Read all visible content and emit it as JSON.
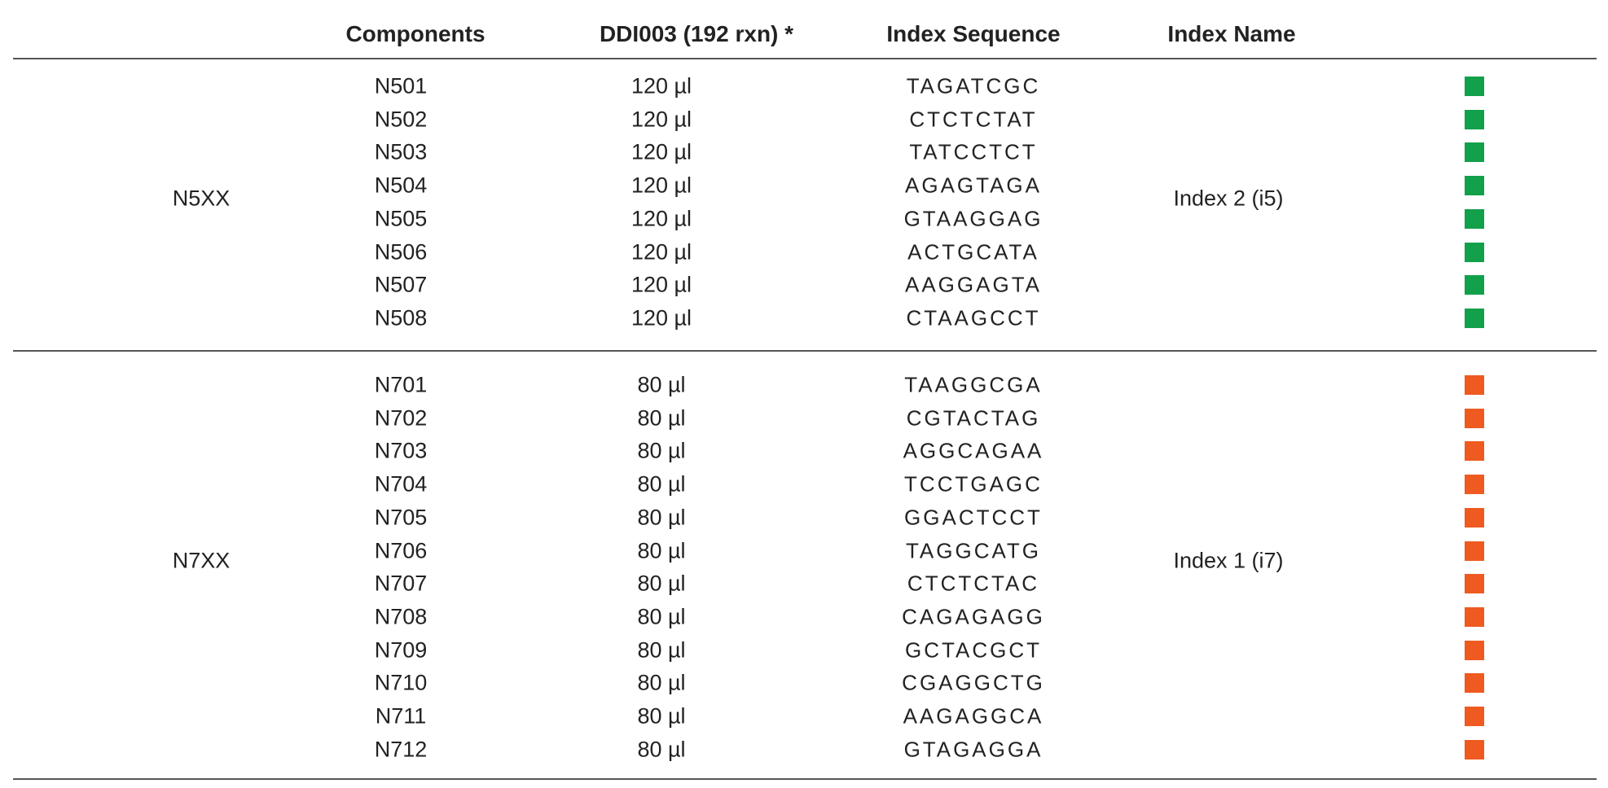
{
  "header": {
    "components": "Components",
    "volume": "DDI003 (192 rxn) *",
    "sequence": "Index Sequence",
    "index_name": "Index Name"
  },
  "groups": [
    {
      "label": "N5XX",
      "index_name": "Index 2 (i5)",
      "color": "#12a04a",
      "rows": [
        {
          "component": "N501",
          "volume": "120 µl",
          "sequence": "TAGATCGC"
        },
        {
          "component": "N502",
          "volume": "120 µl",
          "sequence": "CTCTCTAT"
        },
        {
          "component": "N503",
          "volume": "120 µl",
          "sequence": "TATCCTCT"
        },
        {
          "component": "N504",
          "volume": "120 µl",
          "sequence": "AGAGTAGA"
        },
        {
          "component": "N505",
          "volume": "120 µl",
          "sequence": "GTAAGGAG"
        },
        {
          "component": "N506",
          "volume": "120 µl",
          "sequence": "ACTGCATA"
        },
        {
          "component": "N507",
          "volume": "120 µl",
          "sequence": "AAGGAGTA"
        },
        {
          "component": "N508",
          "volume": "120 µl",
          "sequence": "CTAAGCCT"
        }
      ]
    },
    {
      "label": "N7XX",
      "index_name": "Index 1 (i7)",
      "color": "#ef5a21",
      "rows": [
        {
          "component": "N701",
          "volume": "80 µl",
          "sequence": "TAAGGCGA"
        },
        {
          "component": "N702",
          "volume": "80 µl",
          "sequence": "CGTACTAG"
        },
        {
          "component": "N703",
          "volume": "80 µl",
          "sequence": "AGGCAGAA"
        },
        {
          "component": "N704",
          "volume": "80 µl",
          "sequence": "TCCTGAGC"
        },
        {
          "component": "N705",
          "volume": "80 µl",
          "sequence": "GGACTCCT"
        },
        {
          "component": "N706",
          "volume": "80 µl",
          "sequence": "TAGGCATG"
        },
        {
          "component": "N707",
          "volume": "80 µl",
          "sequence": "CTCTCTAC"
        },
        {
          "component": "N708",
          "volume": "80 µl",
          "sequence": "CAGAGAGG"
        },
        {
          "component": "N709",
          "volume": "80 µl",
          "sequence": "GCTACGCT"
        },
        {
          "component": "N710",
          "volume": "80 µl",
          "sequence": "CGAGGCTG"
        },
        {
          "component": "N711",
          "volume": "80 µl",
          "sequence": "AAGAGGCA"
        },
        {
          "component": "N712",
          "volume": "80 µl",
          "sequence": "GTAGAGGA"
        }
      ]
    }
  ]
}
